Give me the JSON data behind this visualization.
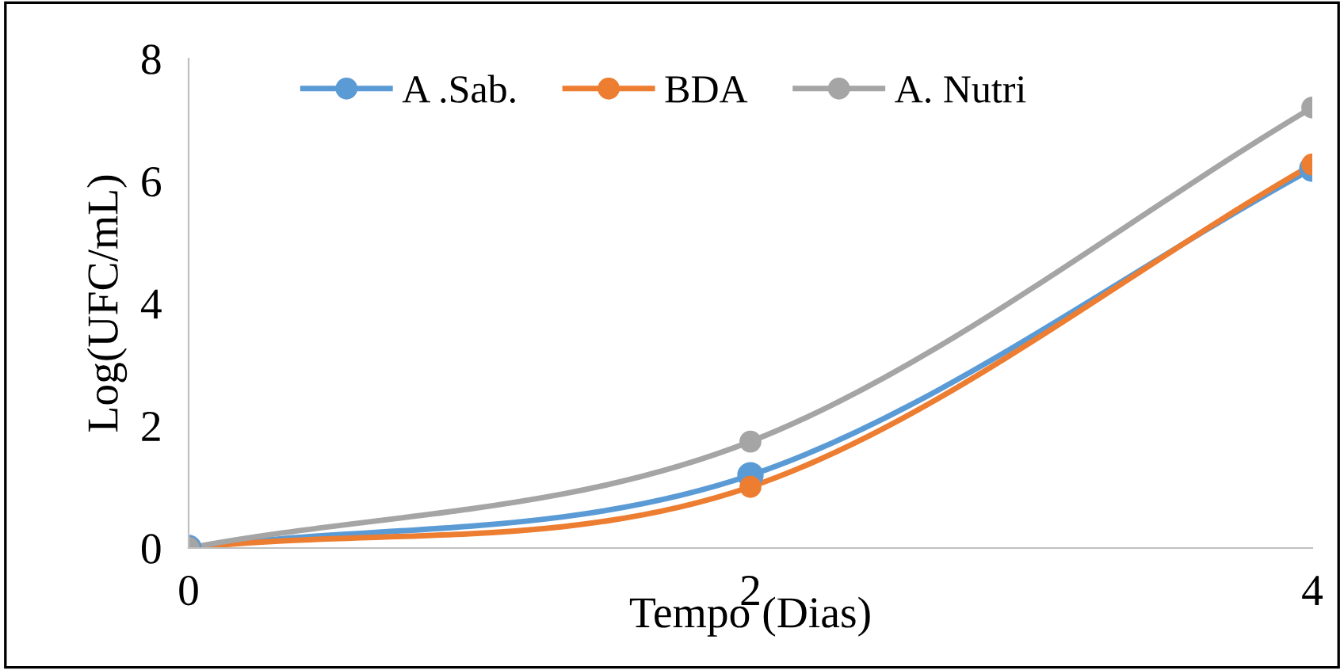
{
  "chart_data": {
    "type": "line",
    "xlabel": "Tempo (Dias)",
    "ylabel": "Log(UFC/mL)",
    "x": [
      0,
      2,
      4
    ],
    "series": [
      {
        "name": "A .Sab.",
        "color": "#5b9bd5",
        "values": [
          0,
          1.19,
          6.2
        ]
      },
      {
        "name": "BDA",
        "color": "#ed7d31",
        "values": [
          0,
          1.0,
          6.27
        ]
      },
      {
        "name": "A. Nutri",
        "color": "#a5a5a5",
        "values": [
          0,
          1.74,
          7.2
        ]
      }
    ],
    "xlim": [
      0,
      4
    ],
    "xticks": [
      0,
      2,
      4
    ],
    "ylim": [
      0,
      8
    ],
    "yticks": [
      0,
      2,
      4,
      6,
      8
    ],
    "grid": false,
    "legend": "top left",
    "marker": "circle",
    "line_style": "solid"
  }
}
